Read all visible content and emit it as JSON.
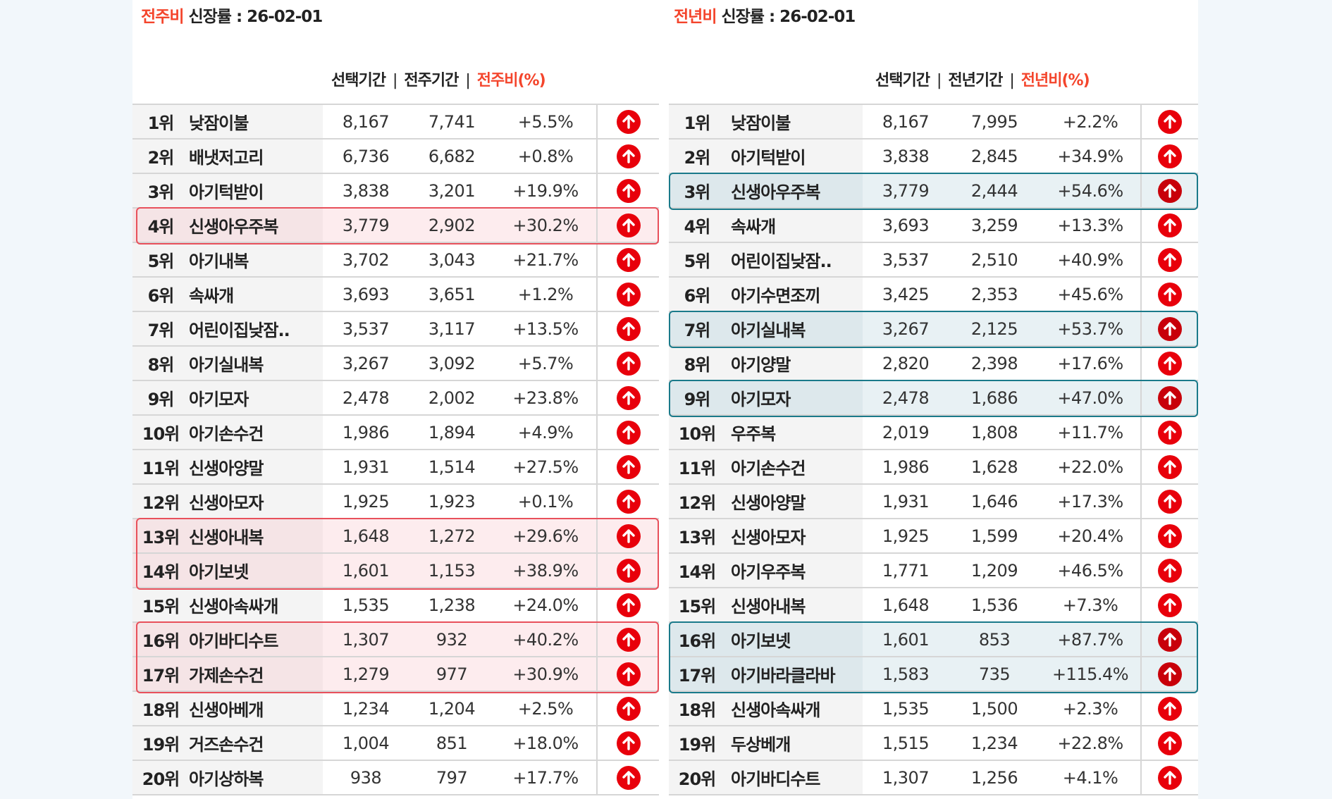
{
  "weekly": {
    "title_accent": "전주비",
    "title_rest": " 신장률  : 26-02-01",
    "col_selected": "선택기간",
    "col_compare": "전주기간",
    "col_ratio": "전주비(%)",
    "separator": "|",
    "highlight_color": "#e8505b",
    "highlight_groups": [
      [
        4
      ],
      [
        13,
        14
      ],
      [
        16,
        17
      ]
    ],
    "rows": [
      {
        "rank": "1위",
        "name": "낮잠이불",
        "selected": "8,167",
        "compare": "7,741",
        "ratio": "+5.5%",
        "icon": "arrow-up-icon"
      },
      {
        "rank": "2위",
        "name": "배냇저고리",
        "selected": "6,736",
        "compare": "6,682",
        "ratio": "+0.8%",
        "icon": "arrow-up-icon"
      },
      {
        "rank": "3위",
        "name": "아기턱받이",
        "selected": "3,838",
        "compare": "3,201",
        "ratio": "+19.9%",
        "icon": "arrow-up-icon"
      },
      {
        "rank": "4위",
        "name": "신생아우주복",
        "selected": "3,779",
        "compare": "2,902",
        "ratio": "+30.2%",
        "icon": "arrow-up-icon"
      },
      {
        "rank": "5위",
        "name": "아기내복",
        "selected": "3,702",
        "compare": "3,043",
        "ratio": "+21.7%",
        "icon": "arrow-up-icon"
      },
      {
        "rank": "6위",
        "name": "속싸개",
        "selected": "3,693",
        "compare": "3,651",
        "ratio": "+1.2%",
        "icon": "arrow-up-icon"
      },
      {
        "rank": "7위",
        "name": "어린이집낮잠..",
        "selected": "3,537",
        "compare": "3,117",
        "ratio": "+13.5%",
        "icon": "arrow-up-icon"
      },
      {
        "rank": "8위",
        "name": "아기실내복",
        "selected": "3,267",
        "compare": "3,092",
        "ratio": "+5.7%",
        "icon": "arrow-up-icon"
      },
      {
        "rank": "9위",
        "name": "아기모자",
        "selected": "2,478",
        "compare": "2,002",
        "ratio": "+23.8%",
        "icon": "arrow-up-icon"
      },
      {
        "rank": "10위",
        "name": "아기손수건",
        "selected": "1,986",
        "compare": "1,894",
        "ratio": "+4.9%",
        "icon": "arrow-up-icon"
      },
      {
        "rank": "11위",
        "name": "신생아양말",
        "selected": "1,931",
        "compare": "1,514",
        "ratio": "+27.5%",
        "icon": "arrow-up-icon"
      },
      {
        "rank": "12위",
        "name": "신생아모자",
        "selected": "1,925",
        "compare": "1,923",
        "ratio": "+0.1%",
        "icon": "arrow-up-icon"
      },
      {
        "rank": "13위",
        "name": "신생아내복",
        "selected": "1,648",
        "compare": "1,272",
        "ratio": "+29.6%",
        "icon": "arrow-up-icon"
      },
      {
        "rank": "14위",
        "name": "아기보넷",
        "selected": "1,601",
        "compare": "1,153",
        "ratio": "+38.9%",
        "icon": "arrow-up-icon"
      },
      {
        "rank": "15위",
        "name": "신생아속싸개",
        "selected": "1,535",
        "compare": "1,238",
        "ratio": "+24.0%",
        "icon": "arrow-up-icon"
      },
      {
        "rank": "16위",
        "name": "아기바디수트",
        "selected": "1,307",
        "compare": "932",
        "ratio": "+40.2%",
        "icon": "arrow-up-icon"
      },
      {
        "rank": "17위",
        "name": "가제손수건",
        "selected": "1,279",
        "compare": "977",
        "ratio": "+30.9%",
        "icon": "arrow-up-icon"
      },
      {
        "rank": "18위",
        "name": "신생아베개",
        "selected": "1,234",
        "compare": "1,204",
        "ratio": "+2.5%",
        "icon": "arrow-up-icon"
      },
      {
        "rank": "19위",
        "name": "거즈손수건",
        "selected": "1,004",
        "compare": "851",
        "ratio": "+18.0%",
        "icon": "arrow-up-icon"
      },
      {
        "rank": "20위",
        "name": "아기상하복",
        "selected": "938",
        "compare": "797",
        "ratio": "+17.7%",
        "icon": "arrow-up-icon"
      }
    ]
  },
  "yearly": {
    "title_accent": "전년비",
    "title_rest": " 신장률 : 26-02-01",
    "col_selected": "선택기간",
    "col_compare": "전년기간",
    "col_ratio": "전년비(%)",
    "separator": "|",
    "highlight_color": "#1a7a8a",
    "highlight_groups": [
      [
        3
      ],
      [
        7
      ],
      [
        9
      ],
      [
        16,
        17
      ]
    ],
    "rows": [
      {
        "rank": "1위",
        "name": "낮잠이불",
        "selected": "8,167",
        "compare": "7,995",
        "ratio": "+2.2%",
        "icon": "arrow-up-icon"
      },
      {
        "rank": "2위",
        "name": "아기턱받이",
        "selected": "3,838",
        "compare": "2,845",
        "ratio": "+34.9%",
        "icon": "arrow-up-icon"
      },
      {
        "rank": "3위",
        "name": "신생아우주복",
        "selected": "3,779",
        "compare": "2,444",
        "ratio": "+54.6%",
        "icon": "arrow-up-icon"
      },
      {
        "rank": "4위",
        "name": "속싸개",
        "selected": "3,693",
        "compare": "3,259",
        "ratio": "+13.3%",
        "icon": "arrow-up-icon"
      },
      {
        "rank": "5위",
        "name": "어린이집낮잠..",
        "selected": "3,537",
        "compare": "2,510",
        "ratio": "+40.9%",
        "icon": "arrow-up-icon"
      },
      {
        "rank": "6위",
        "name": "아기수면조끼",
        "selected": "3,425",
        "compare": "2,353",
        "ratio": "+45.6%",
        "icon": "arrow-up-icon"
      },
      {
        "rank": "7위",
        "name": "아기실내복",
        "selected": "3,267",
        "compare": "2,125",
        "ratio": "+53.7%",
        "icon": "arrow-up-icon"
      },
      {
        "rank": "8위",
        "name": "아기양말",
        "selected": "2,820",
        "compare": "2,398",
        "ratio": "+17.6%",
        "icon": "arrow-up-icon"
      },
      {
        "rank": "9위",
        "name": "아기모자",
        "selected": "2,478",
        "compare": "1,686",
        "ratio": "+47.0%",
        "icon": "arrow-up-icon"
      },
      {
        "rank": "10위",
        "name": "우주복",
        "selected": "2,019",
        "compare": "1,808",
        "ratio": "+11.7%",
        "icon": "arrow-up-icon"
      },
      {
        "rank": "11위",
        "name": "아기손수건",
        "selected": "1,986",
        "compare": "1,628",
        "ratio": "+22.0%",
        "icon": "arrow-up-icon"
      },
      {
        "rank": "12위",
        "name": "신생아양말",
        "selected": "1,931",
        "compare": "1,646",
        "ratio": "+17.3%",
        "icon": "arrow-up-icon"
      },
      {
        "rank": "13위",
        "name": "신생아모자",
        "selected": "1,925",
        "compare": "1,599",
        "ratio": "+20.4%",
        "icon": "arrow-up-icon"
      },
      {
        "rank": "14위",
        "name": "아기우주복",
        "selected": "1,771",
        "compare": "1,209",
        "ratio": "+46.5%",
        "icon": "arrow-up-icon"
      },
      {
        "rank": "15위",
        "name": "신생아내복",
        "selected": "1,648",
        "compare": "1,536",
        "ratio": "+7.3%",
        "icon": "arrow-up-icon"
      },
      {
        "rank": "16위",
        "name": "아기보넷",
        "selected": "1,601",
        "compare": "853",
        "ratio": "+87.7%",
        "icon": "arrow-up-icon"
      },
      {
        "rank": "17위",
        "name": "아기바라클라바",
        "selected": "1,583",
        "compare": "735",
        "ratio": "+115.4%",
        "icon": "arrow-up-icon"
      },
      {
        "rank": "18위",
        "name": "신생아속싸개",
        "selected": "1,535",
        "compare": "1,500",
        "ratio": "+2.3%",
        "icon": "arrow-up-icon"
      },
      {
        "rank": "19위",
        "name": "두상베개",
        "selected": "1,515",
        "compare": "1,234",
        "ratio": "+22.8%",
        "icon": "arrow-up-icon"
      },
      {
        "rank": "20위",
        "name": "아기바디수트",
        "selected": "1,307",
        "compare": "1,256",
        "ratio": "+4.1%",
        "icon": "arrow-up-icon"
      }
    ]
  }
}
